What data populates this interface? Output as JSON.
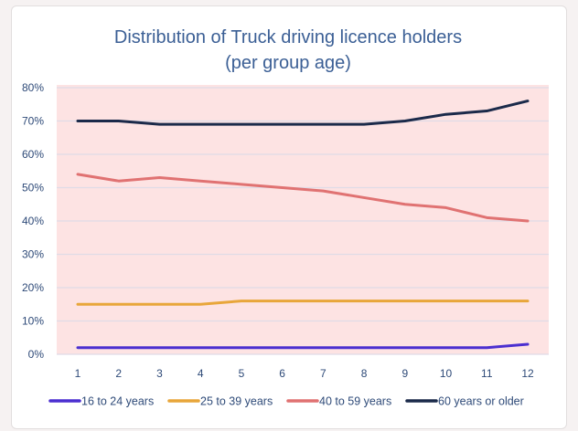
{
  "chart_data": {
    "type": "line",
    "title": [
      "Distribution of Truck driving licence holders",
      "(per group age)"
    ],
    "xlabel": "",
    "ylabel": "",
    "categories": [
      "1",
      "2",
      "3",
      "4",
      "5",
      "6",
      "7",
      "8",
      "9",
      "10",
      "11",
      "12"
    ],
    "yticks": [
      "0%",
      "10%",
      "20%",
      "30%",
      "40%",
      "50%",
      "60%",
      "70%",
      "80%"
    ],
    "ylim": [
      0,
      80
    ],
    "grid": true,
    "plot_background": "#fde3e3",
    "legend_position": "bottom",
    "series": [
      {
        "name": "16 to 24 years",
        "color": "#4b2fd0",
        "values": [
          2,
          2,
          2,
          2,
          2,
          2,
          2,
          2,
          2,
          2,
          2,
          3
        ]
      },
      {
        "name": "25 to 39 years",
        "color": "#e8a63a",
        "values": [
          15,
          15,
          15,
          15,
          16,
          16,
          16,
          16,
          16,
          16,
          16,
          16
        ]
      },
      {
        "name": "40 to 59 years",
        "color": "#e07272",
        "values": [
          54,
          52,
          53,
          52,
          51,
          50,
          49,
          47,
          45,
          44,
          41,
          40
        ]
      },
      {
        "name": "60 years or older",
        "color": "#1b2a4a",
        "values": [
          70,
          70,
          69,
          69,
          69,
          69,
          69,
          69,
          70,
          72,
          73,
          76
        ]
      }
    ]
  }
}
